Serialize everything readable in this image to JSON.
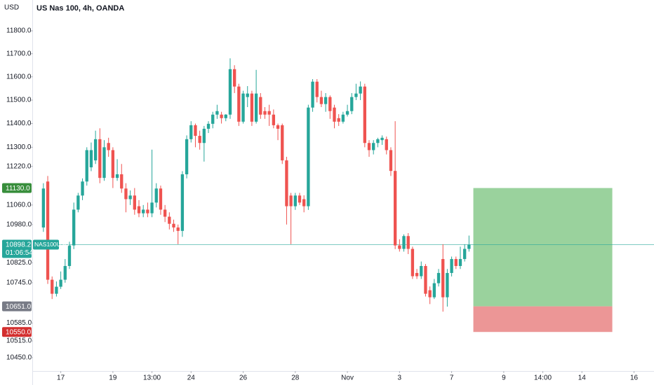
{
  "chart_data": {
    "type": "candlestick",
    "title": "US Nas 100, 4h, OANDA",
    "y_axis_label": "USD",
    "log_scale": true,
    "grid": false,
    "up_color": "#26a69a",
    "down_color": "#ef5350",
    "open": [
      10968,
      11157,
      10757,
      10701,
      10729,
      10757,
      10812,
      10895,
      11041,
      11099,
      11157,
      11216,
      11245,
      11334,
      11172,
      11318,
      11288,
      11172,
      11187,
      11128,
      11084,
      11099,
      11055,
      11026,
      11041,
      11026,
      11070,
      11128,
      11041,
      11012,
      10983,
      10968,
      10954,
      11187,
      11334,
      11393,
      11348,
      11318,
      11378,
      11399,
      11438,
      11438,
      11423,
      11438,
      11633,
      11558,
      11408,
      11513,
      11528,
      11408,
      11513,
      11453,
      11453,
      11438,
      11393,
      11393,
      11245,
      11099,
      11055,
      11099,
      11084,
      11055,
      11468,
      11579,
      11513,
      11483,
      11513,
      11468,
      11423,
      11408,
      11438,
      11453,
      11513,
      11528,
      11558,
      11318,
      11288,
      11318,
      11330,
      11334,
      11288,
      11201,
      10895,
      10881,
      10933,
      10881,
      10784,
      10771,
      10812,
      10715,
      10687,
      10743,
      10840,
      10687,
      10784,
      10840,
      10812,
      10840,
      10881
    ],
    "high": [
      11150,
      11180,
      10770,
      10750,
      10790,
      10840,
      10910,
      11070,
      11110,
      11170,
      11300,
      11320,
      11370,
      11380,
      11330,
      11340,
      11300,
      11250,
      11230,
      11150,
      11120,
      11130,
      11080,
      11060,
      11070,
      11290,
      11150,
      11140,
      11060,
      11030,
      11000,
      10980,
      11200,
      11350,
      11410,
      11400,
      11370,
      11390,
      11410,
      11450,
      11480,
      11450,
      11440,
      11680,
      11650,
      11570,
      11540,
      11560,
      11540,
      11630,
      11530,
      11470,
      11480,
      11460,
      11400,
      11400,
      11260,
      11110,
      11110,
      11110,
      11100,
      11480,
      11590,
      11590,
      11540,
      11530,
      11520,
      11480,
      11440,
      11450,
      11480,
      11530,
      11570,
      11580,
      11570,
      11330,
      11330,
      11340,
      11350,
      11345,
      11300,
      11410,
      10920,
      10940,
      10945,
      10890,
      10800,
      10830,
      10820,
      10730,
      10760,
      10800,
      10900,
      10800,
      10850,
      10850,
      10890,
      10900,
      10935
    ],
    "low": [
      10950,
      10740,
      10680,
      10690,
      10720,
      10745,
      10800,
      10880,
      11030,
      11080,
      11140,
      11200,
      11230,
      11150,
      11160,
      11260,
      11130,
      11160,
      11110,
      11030,
      11060,
      11020,
      11010,
      11010,
      11010,
      11010,
      11050,
      11020,
      10990,
      10960,
      10950,
      10900,
      10930,
      11170,
      11320,
      11300,
      11290,
      11240,
      11360,
      11380,
      11420,
      11400,
      11410,
      11420,
      11530,
      11390,
      11400,
      11470,
      11390,
      11400,
      11420,
      11420,
      11390,
      11380,
      11330,
      11230,
      10980,
      10900,
      11040,
      11060,
      11030,
      11040,
      11450,
      11490,
      11470,
      11450,
      11420,
      11380,
      11390,
      11400,
      11430,
      11440,
      11500,
      11500,
      11300,
      11260,
      11270,
      11300,
      11310,
      11270,
      11180,
      10880,
      10870,
      10870,
      10860,
      10760,
      10760,
      10760,
      10690,
      10660,
      10680,
      10730,
      10630,
      10650,
      10770,
      10800,
      10800,
      10830,
      10870
    ],
    "close": [
      11128,
      10757,
      10701,
      10729,
      10757,
      10812,
      10895,
      11041,
      11099,
      11157,
      11288,
      11288,
      11334,
      11172,
      11300,
      11288,
      11172,
      11187,
      11128,
      11084,
      11099,
      11041,
      11026,
      11041,
      11026,
      11070,
      11128,
      11041,
      11012,
      10983,
      10968,
      10954,
      11187,
      11334,
      11393,
      11348,
      11318,
      11378,
      11399,
      11438,
      11453,
      11423,
      11438,
      11633,
      11558,
      11408,
      11528,
      11528,
      11408,
      11528,
      11438,
      11438,
      11438,
      11393,
      11378,
      11245,
      11055,
      11055,
      11099,
      11070,
      11055,
      11468,
      11579,
      11513,
      11483,
      11513,
      11453,
      11408,
      11408,
      11438,
      11453,
      11513,
      11528,
      11558,
      11318,
      11288,
      11318,
      11334,
      11340,
      11288,
      11201,
      10895,
      10881,
      10933,
      10881,
      10771,
      10771,
      10812,
      10701,
      10687,
      10743,
      10784,
      10687,
      10784,
      10840,
      10812,
      10840,
      10881,
      10898.2
    ],
    "ylim": [
      10398,
      11936
    ],
    "yticks": [
      {
        "value": 11800,
        "label": "11800.0"
      },
      {
        "value": 11700,
        "label": "11700.0"
      },
      {
        "value": 11600,
        "label": "11600.0"
      },
      {
        "value": 11500,
        "label": "11500.0"
      },
      {
        "value": 11400,
        "label": "11400.0"
      },
      {
        "value": 11300,
        "label": "11300.0"
      },
      {
        "value": 11220,
        "label": "11220.0"
      },
      {
        "value": 11060,
        "label": "11060.0"
      },
      {
        "value": 10980,
        "label": "10980.0"
      },
      {
        "value": 10825,
        "label": "10825.0"
      },
      {
        "value": 10745,
        "label": "10745.0"
      },
      {
        "value": 10585,
        "label": "10585.0"
      },
      {
        "value": 10515,
        "label": "10515.0"
      },
      {
        "value": 10450,
        "label": "10450.0"
      }
    ],
    "xlim": [
      -2.4,
      140.6
    ],
    "xticks": [
      {
        "value": 4,
        "label": "17"
      },
      {
        "value": 16,
        "label": "19"
      },
      {
        "value": 25,
        "label": "13:00"
      },
      {
        "value": 34,
        "label": "24"
      },
      {
        "value": 46,
        "label": "26"
      },
      {
        "value": 58,
        "label": "28"
      },
      {
        "value": 70,
        "label": "Nov"
      },
      {
        "value": 82,
        "label": "3"
      },
      {
        "value": 94,
        "label": "7"
      },
      {
        "value": 106,
        "label": "9"
      },
      {
        "value": 115,
        "label": "14:00"
      },
      {
        "value": 124,
        "label": "14"
      },
      {
        "value": 136,
        "label": "16"
      }
    ],
    "price_labels": [
      {
        "value": 11130,
        "label": "11130.0",
        "color": "#388e3c"
      },
      {
        "value": 10651,
        "label": "10651.0",
        "color": "#787b86"
      },
      {
        "value": 10550,
        "label": "10550.0",
        "color": "#d32f2f"
      }
    ],
    "current_price": {
      "value": 10898.2,
      "label": "10898.2",
      "symbol": "NAS100USD",
      "countdown": "01:06:54",
      "color": "#26a69a"
    },
    "position": {
      "entry": 10651,
      "target": 11130,
      "stop": 10550,
      "start": 99,
      "end": 131,
      "profit_color": "#81c784",
      "loss_color": "#e57373"
    }
  }
}
